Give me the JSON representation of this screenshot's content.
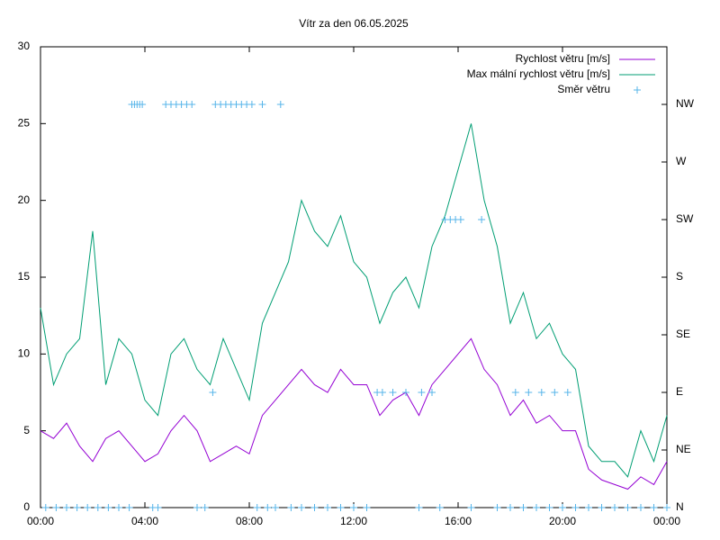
{
  "chart_data": {
    "type": "line",
    "title": "Vítr za den 06.05.2025",
    "x": [
      0,
      0.5,
      1,
      1.5,
      2,
      2.5,
      3,
      3.5,
      4,
      4.5,
      5,
      5.5,
      6,
      6.5,
      7,
      7.5,
      8,
      8.5,
      9,
      9.5,
      10,
      10.5,
      11,
      11.5,
      12,
      12.5,
      13,
      13.5,
      14,
      14.5,
      15,
      15.5,
      16,
      16.5,
      17,
      17.5,
      18,
      18.5,
      19,
      19.5,
      20,
      20.5,
      21,
      21.5,
      22,
      22.5,
      23,
      23.5,
      24
    ],
    "series": [
      {
        "name": "Rychlost větru [m/s]",
        "color": "#9400d3",
        "values": [
          5,
          4.5,
          5.5,
          4,
          3,
          4.5,
          5,
          4,
          3,
          3.5,
          5,
          6,
          5,
          3,
          3.5,
          4,
          3.5,
          6,
          7,
          8,
          9,
          8,
          7.5,
          9,
          8,
          8,
          6,
          7,
          7.5,
          6,
          8,
          9,
          10,
          11,
          9,
          8,
          6,
          7,
          5.5,
          6,
          5,
          5,
          2.5,
          1.8,
          1.5,
          1.2,
          2,
          1.5,
          3
        ]
      },
      {
        "name": "Max mální rychlost větru [m/s]",
        "color": "#009e73",
        "values": [
          13,
          8,
          10,
          11,
          18,
          8,
          11,
          10,
          7,
          6,
          10,
          11,
          9,
          8,
          11,
          9,
          7,
          12,
          14,
          16,
          20,
          18,
          17,
          19,
          16,
          15,
          12,
          14,
          15,
          13,
          17,
          19,
          22,
          25,
          20,
          17,
          12,
          14,
          11,
          12,
          10,
          9,
          4,
          3,
          3,
          2,
          5,
          3,
          6
        ]
      }
    ],
    "direction": {
      "name": "Směr větru",
      "color": "#56b4e9",
      "axis": "y2",
      "x": [
        0.2,
        0.6,
        1.0,
        1.4,
        1.8,
        2.2,
        2.6,
        3.0,
        3.4,
        3.5,
        3.6,
        3.7,
        3.8,
        3.9,
        4.3,
        4.5,
        4.8,
        5.0,
        5.2,
        5.4,
        5.6,
        5.8,
        6.0,
        6.3,
        6.6,
        6.7,
        6.9,
        7.1,
        7.3,
        7.5,
        7.7,
        7.9,
        8.1,
        8.5,
        8.3,
        8.7,
        9.0,
        9.2,
        9.6,
        10.0,
        10.5,
        11.0,
        11.5,
        12.0,
        12.5,
        12.9,
        13.1,
        13.5,
        14.0,
        14.6,
        15.0,
        14.5,
        15.5,
        15.7,
        15.9,
        16.1,
        16.9,
        15.3,
        16.5,
        17.5,
        18.0,
        18.5,
        19.0,
        19.5,
        20.0,
        20.5,
        21.0,
        21.5,
        22.0,
        22.5,
        23.0,
        23.5,
        24.0,
        18.2,
        18.7,
        19.2,
        19.7,
        20.2
      ],
      "values": [
        0,
        0,
        0,
        0,
        0,
        0,
        0,
        0,
        0,
        7,
        7,
        7,
        7,
        7,
        0,
        0,
        7,
        7,
        7,
        7,
        7,
        7,
        0,
        0,
        2,
        7,
        7,
        7,
        7,
        7,
        7,
        7,
        7,
        7,
        0,
        0,
        0,
        7,
        0,
        0,
        0,
        0,
        0,
        0,
        0,
        2,
        2,
        2,
        2,
        2,
        2,
        0,
        5,
        5,
        5,
        5,
        5,
        0,
        0,
        0,
        0,
        0,
        0,
        0,
        0,
        0,
        0,
        0,
        0,
        0,
        0,
        0,
        0,
        2,
        2,
        2,
        2,
        2
      ]
    },
    "xlim": [
      0,
      24
    ],
    "xticks": [
      {
        "value": 0,
        "label": "00:00"
      },
      {
        "value": 4,
        "label": "04:00"
      },
      {
        "value": 8,
        "label": "08:00"
      },
      {
        "value": 12,
        "label": "12:00"
      },
      {
        "value": 16,
        "label": "16:00"
      },
      {
        "value": 20,
        "label": "20:00"
      },
      {
        "value": 24,
        "label": "00:00"
      }
    ],
    "ylim": [
      0,
      30
    ],
    "yticks": [
      0,
      5,
      10,
      15,
      20,
      25,
      30
    ],
    "y2lim": [
      0,
      8
    ],
    "y2ticks": [
      {
        "value": 0,
        "label": "N"
      },
      {
        "value": 1,
        "label": "NE"
      },
      {
        "value": 2,
        "label": "E"
      },
      {
        "value": 3,
        "label": "SE"
      },
      {
        "value": 4,
        "label": "S"
      },
      {
        "value": 5,
        "label": "SW"
      },
      {
        "value": 6,
        "label": "W"
      },
      {
        "value": 7,
        "label": "NW"
      }
    ],
    "legend": "top-right",
    "grid": false
  }
}
